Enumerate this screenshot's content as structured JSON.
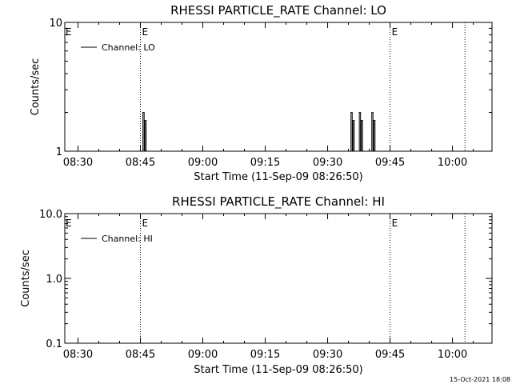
{
  "chart_data": [
    {
      "type": "line",
      "title": "RHESSI PARTICLE_RATE Channel: LO",
      "xlabel": "Start Time (11-Sep-09 08:26:50)",
      "ylabel": "Counts/sec",
      "yscale": "log",
      "ylim": [
        1,
        10
      ],
      "ytick_labels": [
        "1",
        "10"
      ],
      "xlim": [
        "08:26:50",
        "10:09:30"
      ],
      "xtick_labels": [
        "08:30",
        "08:45",
        "09:00",
        "09:15",
        "09:30",
        "09:45",
        "10:00"
      ],
      "grid": false,
      "legend_position": "top-left",
      "series": [
        {
          "name": "Channel: LO",
          "x": [
            "08:46",
            "08:46",
            "08:46",
            "09:36",
            "09:36",
            "09:36",
            "09:38",
            "09:38",
            "09:38",
            "09:41",
            "09:41",
            "09:41"
          ],
          "y": [
            1,
            2,
            1,
            1,
            2,
            1,
            1,
            2,
            1,
            1,
            2,
            1
          ]
        }
      ],
      "event_lines": [
        {
          "x": "08:45",
          "marker": "E"
        },
        {
          "x": "09:45",
          "marker": "E"
        },
        {
          "x": "10:03",
          "marker": ""
        }
      ]
    },
    {
      "type": "line",
      "title": "RHESSI PARTICLE_RATE Channel: HI",
      "xlabel": "Start Time (11-Sep-09 08:26:50)",
      "ylabel": "Counts/sec",
      "yscale": "log",
      "ylim": [
        0.1,
        10
      ],
      "ytick_labels": [
        "0.1",
        "1.0",
        "10.0"
      ],
      "xlim": [
        "08:26:50",
        "10:09:30"
      ],
      "xtick_labels": [
        "08:30",
        "08:45",
        "09:00",
        "09:15",
        "09:30",
        "09:45",
        "10:00"
      ],
      "grid": false,
      "legend_position": "top-left",
      "series": [
        {
          "name": "Channel: HI",
          "x": [],
          "y": []
        }
      ],
      "event_lines": [
        {
          "x": "08:45",
          "marker": "E"
        },
        {
          "x": "09:45",
          "marker": "E"
        },
        {
          "x": "10:03",
          "marker": ""
        }
      ]
    }
  ],
  "footer": {
    "date": "15-Oct-2021 18:08"
  }
}
